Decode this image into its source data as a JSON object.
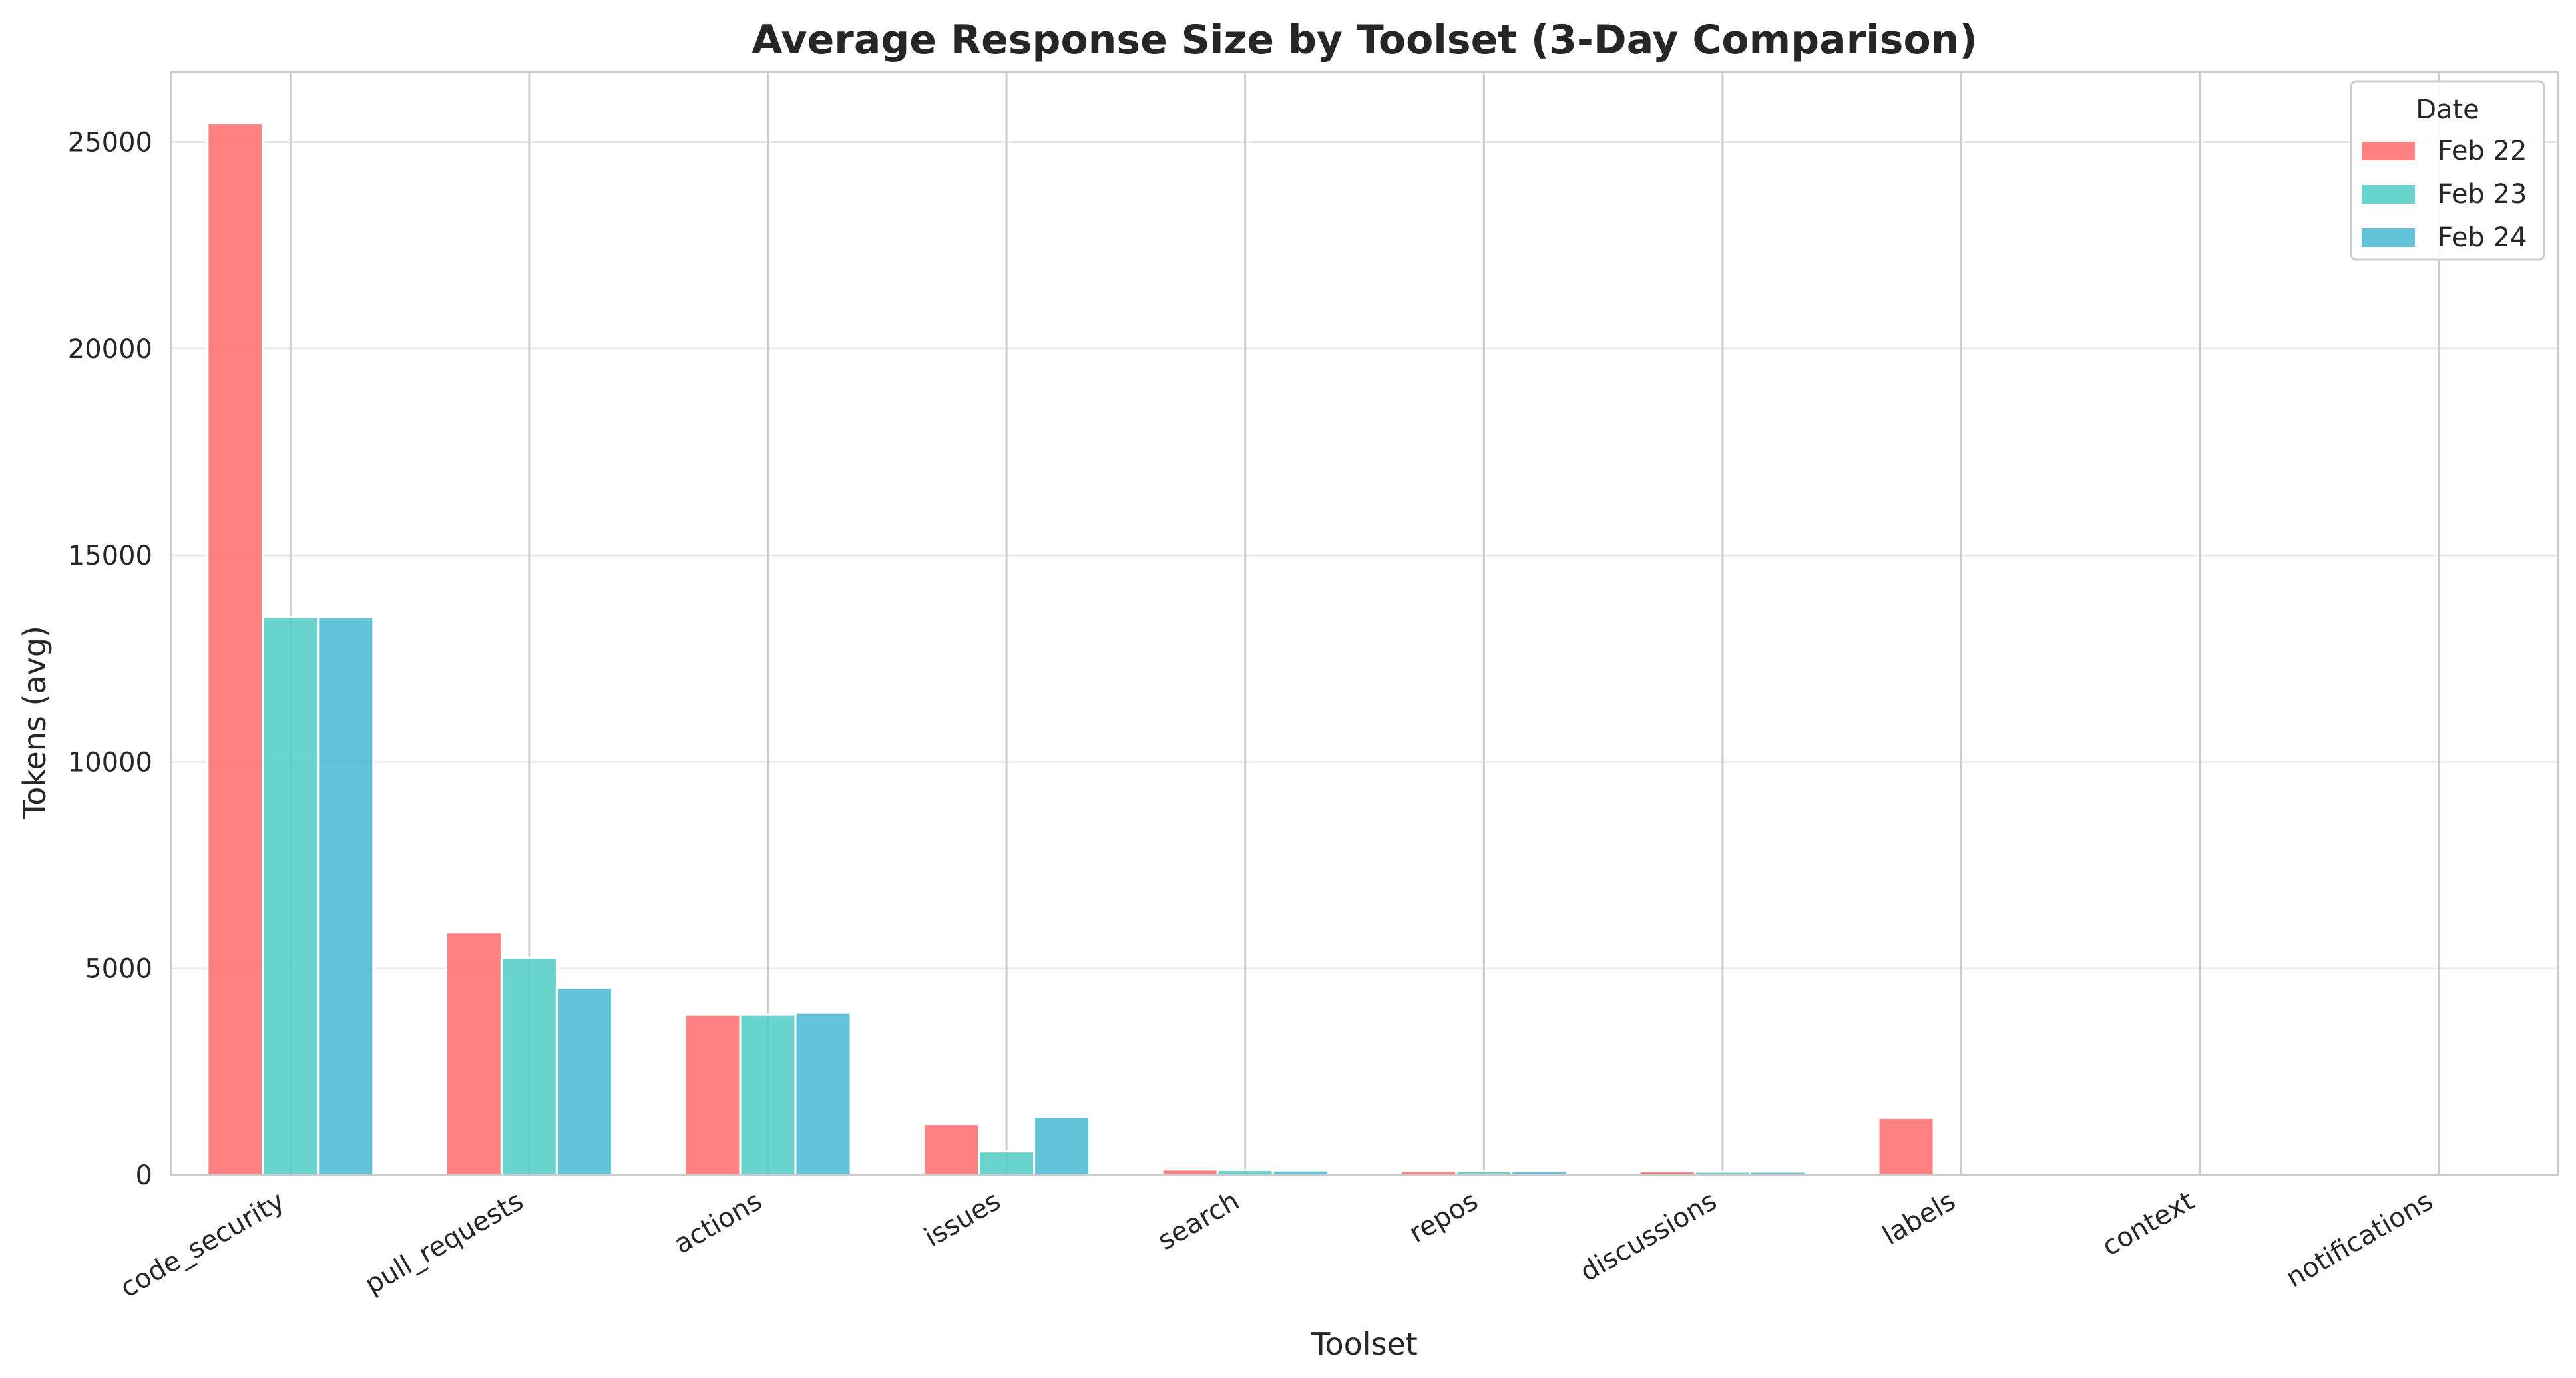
{
  "chart_data": {
    "type": "bar",
    "title": "Average Response Size by Toolset (3-Day Comparison)",
    "xlabel": "Toolset",
    "ylabel": "Tokens (avg)",
    "ylim": [
      0,
      26700
    ],
    "yticks": [
      0,
      5000,
      10000,
      15000,
      20000,
      25000
    ],
    "categories": [
      "code_security",
      "pull_requests",
      "actions",
      "issues",
      "search",
      "repos",
      "discussions",
      "labels",
      "context",
      "notifications"
    ],
    "series": [
      {
        "name": "Feb 22",
        "color": "#FF6B6B",
        "values": [
          25450,
          5870,
          3880,
          1230,
          130,
          100,
          90,
          1380,
          0,
          0
        ]
      },
      {
        "name": "Feb 23",
        "color": "#4ECDC4",
        "values": [
          13500,
          5260,
          3880,
          570,
          120,
          90,
          80,
          0,
          0,
          0
        ]
      },
      {
        "name": "Feb 24",
        "color": "#45B7D1",
        "values": [
          13500,
          4530,
          3930,
          1400,
          110,
          90,
          80,
          0,
          0,
          0
        ]
      }
    ],
    "legend": {
      "title": "Date",
      "position": "top-right"
    },
    "grid": true
  }
}
